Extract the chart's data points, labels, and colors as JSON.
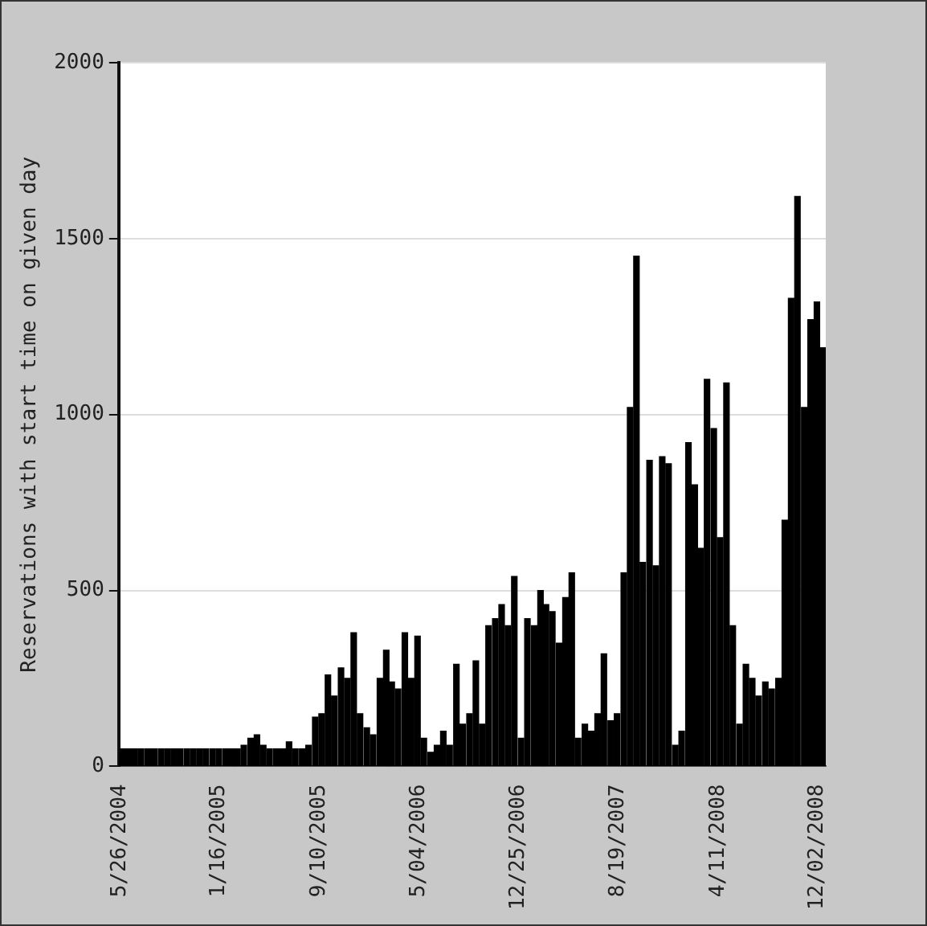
{
  "chart_data": {
    "type": "bar",
    "ylabel": "Reservations with start time on given day",
    "x": [
      "2004-06-01",
      "2004-06-16",
      "2004-07-01",
      "2004-07-16",
      "2004-08-01",
      "2004-08-16",
      "2004-09-01",
      "2004-09-16",
      "2004-10-01",
      "2004-10-16",
      "2004-11-01",
      "2004-11-16",
      "2004-12-01",
      "2004-12-16",
      "2005-01-01",
      "2005-01-16",
      "2005-02-01",
      "2005-02-16",
      "2005-03-01",
      "2005-03-16",
      "2005-04-01",
      "2005-04-16",
      "2005-05-01",
      "2005-05-16",
      "2005-06-01",
      "2005-06-16",
      "2005-07-01",
      "2005-07-16",
      "2005-08-01",
      "2005-08-16",
      "2005-09-01",
      "2005-09-16",
      "2005-10-01",
      "2005-10-16",
      "2005-11-01",
      "2005-11-16",
      "2005-12-01",
      "2005-12-16",
      "2006-01-01",
      "2006-01-16",
      "2006-02-01",
      "2006-02-16",
      "2006-03-01",
      "2006-03-16",
      "2006-04-01",
      "2006-04-16",
      "2006-05-01",
      "2006-05-16",
      "2006-06-01",
      "2006-06-16",
      "2006-07-01",
      "2006-07-16",
      "2006-08-01",
      "2006-08-16",
      "2006-09-01",
      "2006-09-16",
      "2006-10-01",
      "2006-10-16",
      "2006-11-01",
      "2006-11-16",
      "2006-12-01",
      "2006-12-16",
      "2007-01-01",
      "2007-01-16",
      "2007-02-01",
      "2007-02-16",
      "2007-03-01",
      "2007-03-16",
      "2007-04-01",
      "2007-04-16",
      "2007-05-01",
      "2007-05-16",
      "2007-06-01",
      "2007-06-16",
      "2007-07-01",
      "2007-07-16",
      "2007-08-01",
      "2007-08-16",
      "2007-09-01",
      "2007-09-16",
      "2007-10-01",
      "2007-10-16",
      "2007-11-01",
      "2007-11-16",
      "2007-12-01",
      "2007-12-16",
      "2008-01-01",
      "2008-01-16",
      "2008-02-01",
      "2008-02-16",
      "2008-03-01",
      "2008-03-16",
      "2008-04-01",
      "2008-04-16",
      "2008-05-01",
      "2008-05-16",
      "2008-06-01",
      "2008-06-16",
      "2008-07-01",
      "2008-07-16",
      "2008-08-01",
      "2008-08-16",
      "2008-09-01",
      "2008-09-16",
      "2008-10-01",
      "2008-10-16",
      "2008-11-01",
      "2008-11-16",
      "2008-12-01",
      "2008-12-16"
    ],
    "values": [
      50,
      50,
      50,
      50,
      50,
      50,
      50,
      50,
      50,
      50,
      50,
      50,
      50,
      50,
      50,
      50,
      50,
      50,
      50,
      60,
      80,
      90,
      60,
      50,
      50,
      50,
      70,
      50,
      50,
      60,
      140,
      150,
      260,
      200,
      280,
      250,
      380,
      150,
      110,
      90,
      250,
      330,
      240,
      220,
      380,
      250,
      370,
      80,
      40,
      60,
      100,
      60,
      290,
      120,
      150,
      300,
      120,
      400,
      420,
      460,
      400,
      540,
      80,
      420,
      400,
      500,
      460,
      440,
      350,
      480,
      550,
      80,
      120,
      100,
      150,
      320,
      130,
      150,
      550,
      1020,
      1450,
      580,
      870,
      570,
      880,
      860,
      60,
      100,
      920,
      800,
      620,
      1100,
      960,
      650,
      1090,
      400,
      120,
      290,
      250,
      200,
      240,
      220,
      250,
      700,
      1330,
      1620,
      1020,
      1270,
      1320,
      1190
    ],
    "color": "#000000",
    "xlim": [
      "2004-05-24",
      "2008-12-22"
    ],
    "xticks": [
      {
        "value": "2004-05-26",
        "label": "5/26/2004"
      },
      {
        "value": "2005-01-16",
        "label": "1/16/2005"
      },
      {
        "value": "2005-09-10",
        "label": "9/10/2005"
      },
      {
        "value": "2006-05-04",
        "label": "5/04/2006"
      },
      {
        "value": "2006-12-25",
        "label": "12/25/2006"
      },
      {
        "value": "2007-08-19",
        "label": "8/19/2007"
      },
      {
        "value": "2008-04-11",
        "label": "4/11/2008"
      },
      {
        "value": "2008-12-02",
        "label": "12/02/2008"
      }
    ],
    "ylim": [
      0,
      2000
    ],
    "yticks": [
      0,
      500,
      1000,
      1500,
      2000
    ],
    "grid": "y"
  }
}
